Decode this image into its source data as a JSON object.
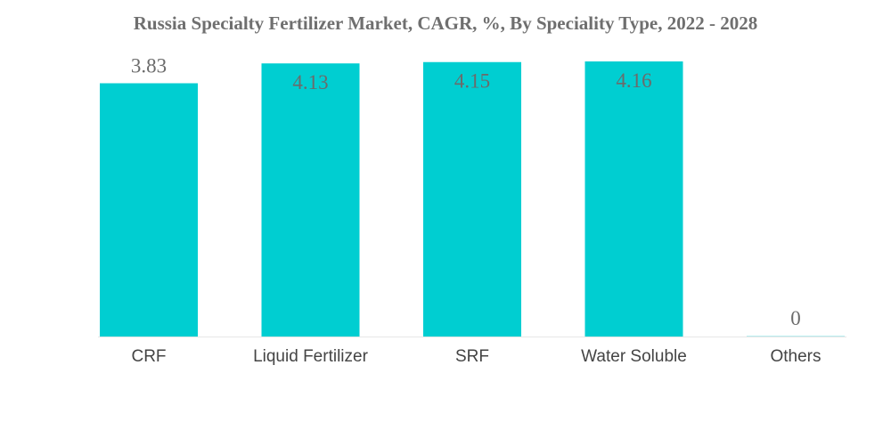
{
  "chart_data": {
    "type": "bar",
    "title": "Russia Specialty Fertilizer Market, CAGR, %, By Speciality Type, 2022 - 2028",
    "categories": [
      "CRF",
      "Liquid Fertilizer",
      "SRF",
      "Water Soluble",
      "Others"
    ],
    "values": [
      3.83,
      4.13,
      4.15,
      4.16,
      0
    ],
    "value_labels": [
      "3.83",
      "4.13",
      "4.15",
      "4.16",
      "0"
    ],
    "xlabel": "",
    "ylabel": "",
    "ylim": [
      0,
      4.16
    ],
    "grid": false,
    "legend": "none",
    "bar_color": "#00CED1"
  }
}
